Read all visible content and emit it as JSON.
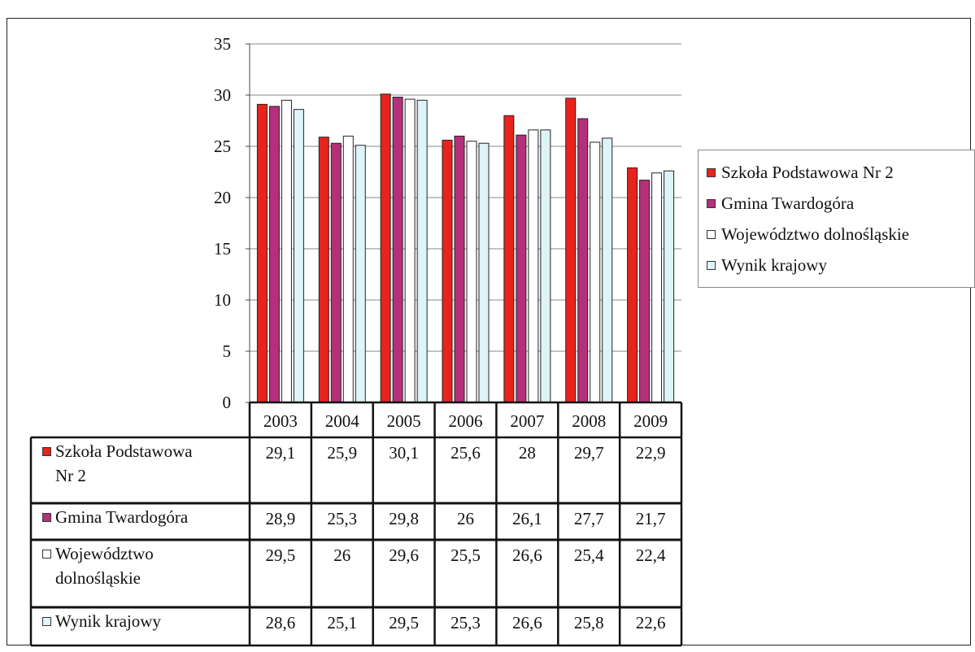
{
  "chart_data": {
    "type": "bar",
    "categories": [
      "2003",
      "2004",
      "2005",
      "2006",
      "2007",
      "2008",
      "2009"
    ],
    "series": [
      {
        "name": "Szkoła Podstawowa Nr 2",
        "color": "#e8231c",
        "values": [
          29.1,
          25.9,
          30.1,
          25.6,
          28,
          29.7,
          22.9
        ],
        "table_values": [
          "29,1",
          "25,9",
          "30,1",
          "25,6",
          "28",
          "29,7",
          "22,9"
        ]
      },
      {
        "name": "Gmina Twardogóra",
        "color": "#b4307a",
        "values": [
          28.9,
          25.3,
          29.8,
          26,
          26.1,
          27.7,
          21.7
        ],
        "table_values": [
          "28,9",
          "25,3",
          "29,8",
          "26",
          "26,1",
          "27,7",
          "21,7"
        ]
      },
      {
        "name": "Województwo dolnośląskie",
        "color": "#ffffff",
        "values": [
          29.5,
          26,
          29.6,
          25.5,
          26.6,
          25.4,
          22.4
        ],
        "table_values": [
          "29,5",
          "26",
          "29,6",
          "25,5",
          "26,6",
          "25,4",
          "22,4"
        ]
      },
      {
        "name": "Wynik krajowy",
        "color": "#dff4f8",
        "values": [
          28.6,
          25.1,
          29.5,
          25.3,
          26.6,
          25.8,
          22.6
        ],
        "table_values": [
          "28,6",
          "25,1",
          "29,5",
          "25,3",
          "26,6",
          "25,8",
          "22,6"
        ]
      }
    ],
    "ylim": [
      0,
      35
    ],
    "yticks": [
      0,
      5,
      10,
      15,
      20,
      25,
      30,
      35
    ],
    "grid": true,
    "legend_position": "right",
    "data_table": true,
    "title": "",
    "xlabel": "",
    "ylabel": ""
  },
  "table_row_labels": [
    [
      "Szkoła Podstawowa",
      "Nr 2"
    ],
    [
      "Gmina Twardogóra"
    ],
    [
      "Województwo",
      "dolnośląskie"
    ],
    [
      "Wynik krajowy"
    ]
  ]
}
